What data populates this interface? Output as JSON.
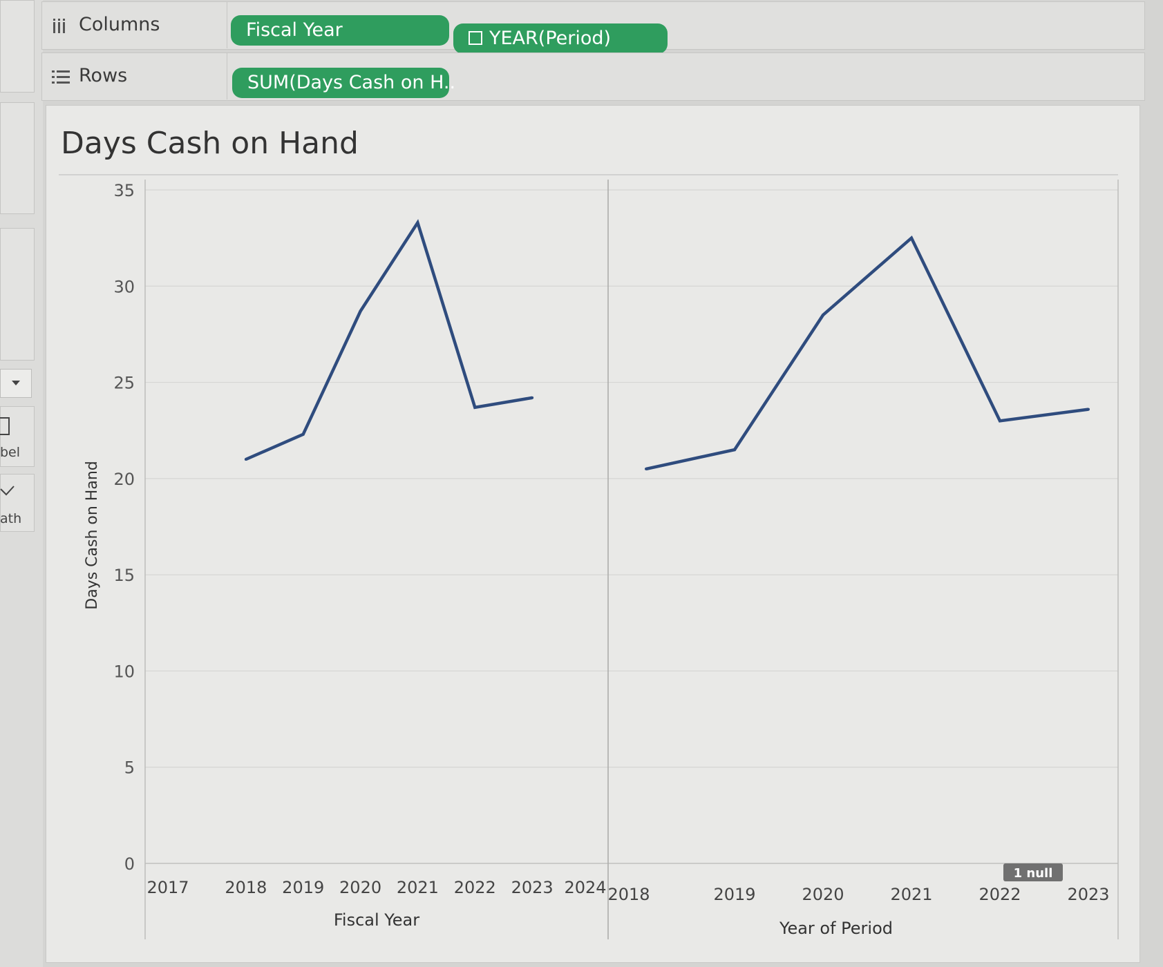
{
  "left_panel": {
    "label_1": "bel",
    "label_2": "ath"
  },
  "shelves": {
    "columns": {
      "label": "Columns",
      "pills": [
        "Fiscal Year",
        "YEAR(Period)"
      ]
    },
    "rows": {
      "label": "Rows",
      "pills": [
        "SUM(Days Cash on H.."
      ]
    }
  },
  "chart_data": {
    "type": "line",
    "title": "Days Cash on Hand",
    "ylabel": "Days Cash on Hand",
    "ylim": [
      0,
      35
    ],
    "yticks": [
      0,
      5,
      10,
      15,
      20,
      25,
      30,
      35
    ],
    "line_color": "#2f4c7e",
    "panes": [
      {
        "xlabel": "Fiscal Year",
        "x_ticks": [
          "2017",
          "2018",
          "2019",
          "2020",
          "2021",
          "2022",
          "2023",
          "2024"
        ],
        "series": [
          {
            "x": [
              "2018",
              "2019",
              "2020",
              "2021",
              "2022",
              "2023"
            ],
            "values": [
              21.0,
              22.3,
              28.7,
              33.3,
              23.7,
              24.2
            ]
          }
        ]
      },
      {
        "xlabel": "Year of Period",
        "x_ticks": [
          "2018",
          "2019",
          "2020",
          "2021",
          "2022",
          "2023"
        ],
        "series": [
          {
            "x": [
              "2018",
              "2019",
              "2020",
              "2021",
              "2022",
              "2023"
            ],
            "values": [
              20.5,
              21.5,
              28.5,
              32.5,
              23.0,
              23.6
            ]
          }
        ],
        "null_indicator": "1 null"
      }
    ]
  }
}
